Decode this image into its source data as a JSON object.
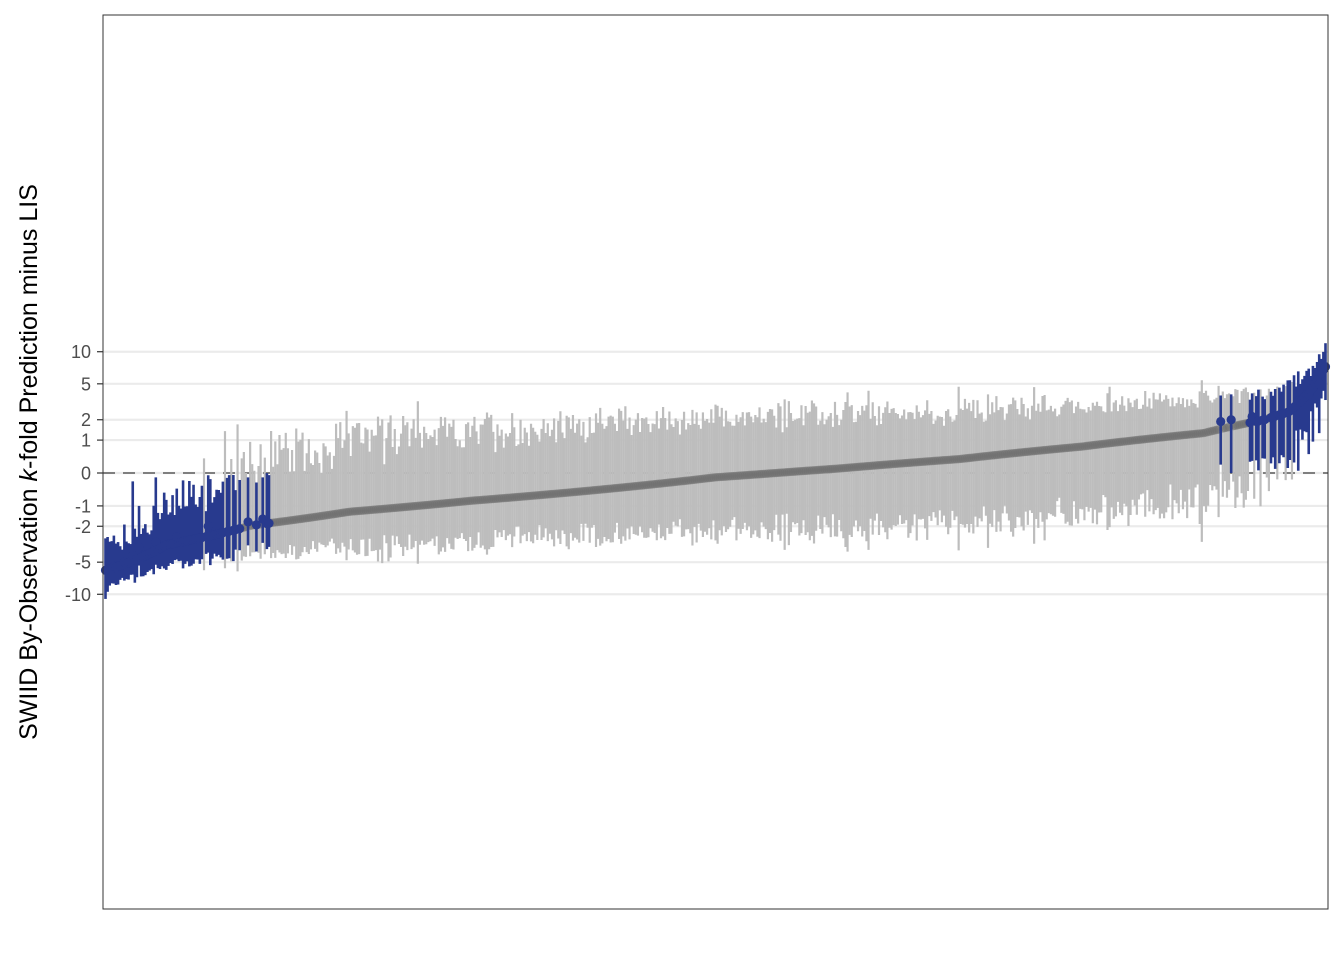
{
  "chart_data": {
    "type": "scatter",
    "subtype": "sorted point estimates with vertical interval bars (caterpillar plot)",
    "ylabel": {
      "prefix": "SWIID By-Observation ",
      "italic": "k",
      "suffix": "-fold Prediction minus LIS"
    },
    "xlabel": "",
    "y_ticks": [
      {
        "label": "-10",
        "value": -10
      },
      {
        "label": "-5",
        "value": -5
      },
      {
        "label": "-2",
        "value": -2
      },
      {
        "label": "-1",
        "value": -1
      },
      {
        "label": "0",
        "value": 0
      },
      {
        "label": "1",
        "value": 1
      },
      {
        "label": "2",
        "value": 2
      },
      {
        "label": "5",
        "value": 5
      },
      {
        "label": "10",
        "value": 10
      }
    ],
    "y_scale": "pseudo-log (signed)",
    "ylim": [
      -12.5,
      14.5
    ],
    "reference_line": {
      "value": 0,
      "style": "dashed"
    },
    "grid": "horizontal major only",
    "n_observations": 583,
    "colors": {
      "inside": "#bdbdbd",
      "inside_point": "#6e6e6e",
      "outside": "#283a8e",
      "panel_border": "#333333",
      "grid": "#ebebeb",
      "zero_line": "#7f7f7f"
    },
    "highlighted_series": "interval excludes zero (dark blue)",
    "outside_low_examples": [
      {
        "rank": 1,
        "estimate": -6.0,
        "lower": -11.0,
        "upper": -2.8
      },
      {
        "rank": 2,
        "estimate": -5.9,
        "lower": -9.5,
        "upper": -2.7
      },
      {
        "rank": 5,
        "estimate": -5.5,
        "lower": -8.0,
        "upper": -2.6
      },
      {
        "rank": 10,
        "estimate": -5.0,
        "lower": -7.5,
        "upper": -1.9
      },
      {
        "rank": 14,
        "estimate": -4.3,
        "lower": -6.6,
        "upper": -0.2
      },
      {
        "rank": 17,
        "estimate": -3.5,
        "lower": -5.4,
        "upper": -1.0
      },
      {
        "rank": 25,
        "estimate": -3.1,
        "lower": -5.3,
        "upper": -0.1
      },
      {
        "rank": 35,
        "estimate": -2.7,
        "lower": -4.7,
        "upper": -0.4
      },
      {
        "rank": 50,
        "estimate": -2.0,
        "lower": -4.0,
        "upper": -0.05
      },
      {
        "rank": 69,
        "estimate": -1.75,
        "lower": -3.35,
        "upper": -0.1
      },
      {
        "rank": 76,
        "estimate": -1.6,
        "lower": -3.15,
        "upper": -0.1
      }
    ],
    "outside_high_examples": [
      {
        "rank": 533,
        "estimate": 1.9,
        "lower": 0.2,
        "upper": 3.8
      },
      {
        "rank": 538,
        "estimate": 2.0,
        "lower": 0.0,
        "upper": 3.9
      },
      {
        "rank": 548,
        "estimate": 2.2,
        "lower": 0.3,
        "upper": 4.0
      },
      {
        "rank": 570,
        "estimate": 3.3,
        "lower": 0.05,
        "upper": 6.6
      },
      {
        "rank": 575,
        "estimate": 3.9,
        "lower": 0.5,
        "upper": 7.0
      },
      {
        "rank": 580,
        "estimate": 5.0,
        "lower": 1.3,
        "upper": 9.5
      },
      {
        "rank": 583,
        "estimate": 7.3,
        "lower": 3.4,
        "upper": 11.9
      }
    ],
    "curve_shape": [
      {
        "quantile": 0.0,
        "estimate": -6.0
      },
      {
        "quantile": 0.02,
        "estimate": -5.0
      },
      {
        "quantile": 0.05,
        "estimate": -3.3
      },
      {
        "quantile": 0.12,
        "estimate": -1.95
      },
      {
        "quantile": 0.2,
        "estimate": -1.25
      },
      {
        "quantile": 0.3,
        "estimate": -0.8
      },
      {
        "quantile": 0.4,
        "estimate": -0.45
      },
      {
        "quantile": 0.5,
        "estimate": -0.1
      },
      {
        "quantile": 0.6,
        "estimate": 0.1
      },
      {
        "quantile": 0.7,
        "estimate": 0.35
      },
      {
        "quantile": 0.8,
        "estimate": 0.75
      },
      {
        "quantile": 0.9,
        "estimate": 1.3
      },
      {
        "quantile": 0.95,
        "estimate": 2.0
      },
      {
        "quantile": 0.97,
        "estimate": 2.5
      },
      {
        "quantile": 0.98,
        "estimate": 3.3
      },
      {
        "quantile": 0.99,
        "estimate": 4.6
      },
      {
        "quantile": 1.0,
        "estimate": 7.3
      }
    ]
  }
}
